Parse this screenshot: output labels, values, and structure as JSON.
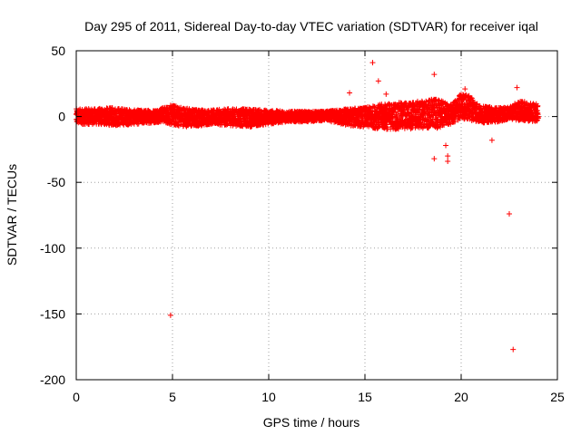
{
  "chart_data": {
    "type": "scatter",
    "title": "Day 295 of 2011, Sidereal Day-to-day VTEC variation (SDTVAR) for receiver iqal",
    "xlabel": "GPS time / hours",
    "ylabel": "SDTVAR / TECUs",
    "xlim": [
      0,
      25
    ],
    "ylim": [
      -200,
      50
    ],
    "xticks": [
      0,
      5,
      10,
      15,
      20,
      25
    ],
    "xtick_labels": [
      "0",
      "5",
      "10",
      "15",
      "20",
      "25"
    ],
    "yticks": [
      50,
      0,
      -50,
      -100,
      -150,
      -200
    ],
    "ytick_labels": [
      "50",
      "0",
      "-50",
      "-100",
      "-150",
      "-200"
    ],
    "grid": true,
    "marker": "+",
    "color": "#ff0000",
    "band_envelope": {
      "description": "dense band of samples plotted as overlapping markers",
      "x": [
        0,
        1,
        2,
        3,
        4,
        4.5,
        5,
        6,
        7,
        8,
        9,
        10,
        11,
        12,
        13,
        14,
        15,
        16,
        17,
        18,
        18.5,
        19,
        19.5,
        20,
        20.5,
        21,
        22,
        22.5,
        23,
        24
      ],
      "upper": [
        6,
        6,
        7,
        5,
        5,
        7,
        9,
        6,
        5,
        6,
        6,
        5,
        4,
        4,
        4,
        6,
        7,
        10,
        11,
        12,
        14,
        12,
        9,
        18,
        16,
        8,
        7,
        7,
        12,
        10
      ],
      "lower": [
        -6,
        -6,
        -7,
        -6,
        -5,
        -4,
        -7,
        -8,
        -6,
        -7,
        -8,
        -6,
        -4,
        -4,
        -3,
        -7,
        -8,
        -10,
        -10,
        -9,
        -10,
        -8,
        -6,
        -2,
        -3,
        -5,
        -4,
        -2,
        -3,
        -4
      ]
    },
    "outliers": [
      {
        "x": 4.9,
        "y": -151
      },
      {
        "x": 15.4,
        "y": 41
      },
      {
        "x": 18.6,
        "y": 32
      },
      {
        "x": 18.6,
        "y": -32
      },
      {
        "x": 19.3,
        "y": -30
      },
      {
        "x": 19.3,
        "y": -34
      },
      {
        "x": 19.2,
        "y": -22
      },
      {
        "x": 21.6,
        "y": -18
      },
      {
        "x": 22.5,
        "y": -74
      },
      {
        "x": 22.7,
        "y": -177
      },
      {
        "x": 15.7,
        "y": 27
      },
      {
        "x": 14.2,
        "y": 18
      },
      {
        "x": 22.9,
        "y": 22
      },
      {
        "x": 20.2,
        "y": 21
      },
      {
        "x": 16.1,
        "y": 17
      }
    ]
  }
}
